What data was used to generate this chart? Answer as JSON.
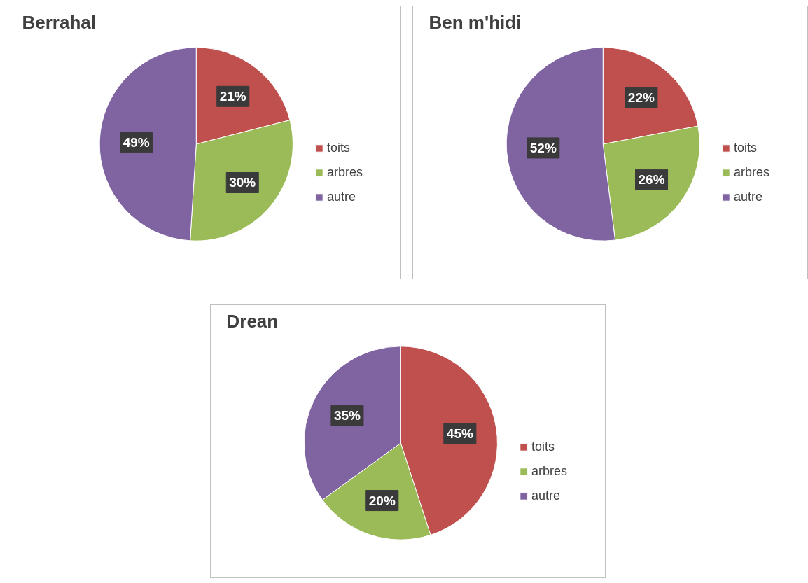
{
  "chart_data": [
    {
      "type": "pie",
      "title": "Berrahal",
      "categories": [
        "toits",
        "arbres",
        "autre"
      ],
      "values": [
        21,
        30,
        49
      ],
      "value_labels": [
        "21%",
        "30%",
        "49%"
      ],
      "colors": [
        "#c0504d",
        "#9bbb59",
        "#8064a2"
      ],
      "legend": "right"
    },
    {
      "type": "pie",
      "title": "Ben m'hidi",
      "categories": [
        "toits",
        "arbres",
        "autre"
      ],
      "values": [
        22,
        26,
        52
      ],
      "value_labels": [
        "22%",
        "26%",
        "52%"
      ],
      "colors": [
        "#c0504d",
        "#9bbb59",
        "#8064a2"
      ],
      "legend": "right"
    },
    {
      "type": "pie",
      "title": "Drean",
      "categories": [
        "toits",
        "arbres",
        "autre"
      ],
      "values": [
        45,
        20,
        35
      ],
      "value_labels": [
        "45%",
        "20%",
        "35%"
      ],
      "colors": [
        "#c0504d",
        "#9bbb59",
        "#8064a2"
      ],
      "legend": "right"
    }
  ]
}
